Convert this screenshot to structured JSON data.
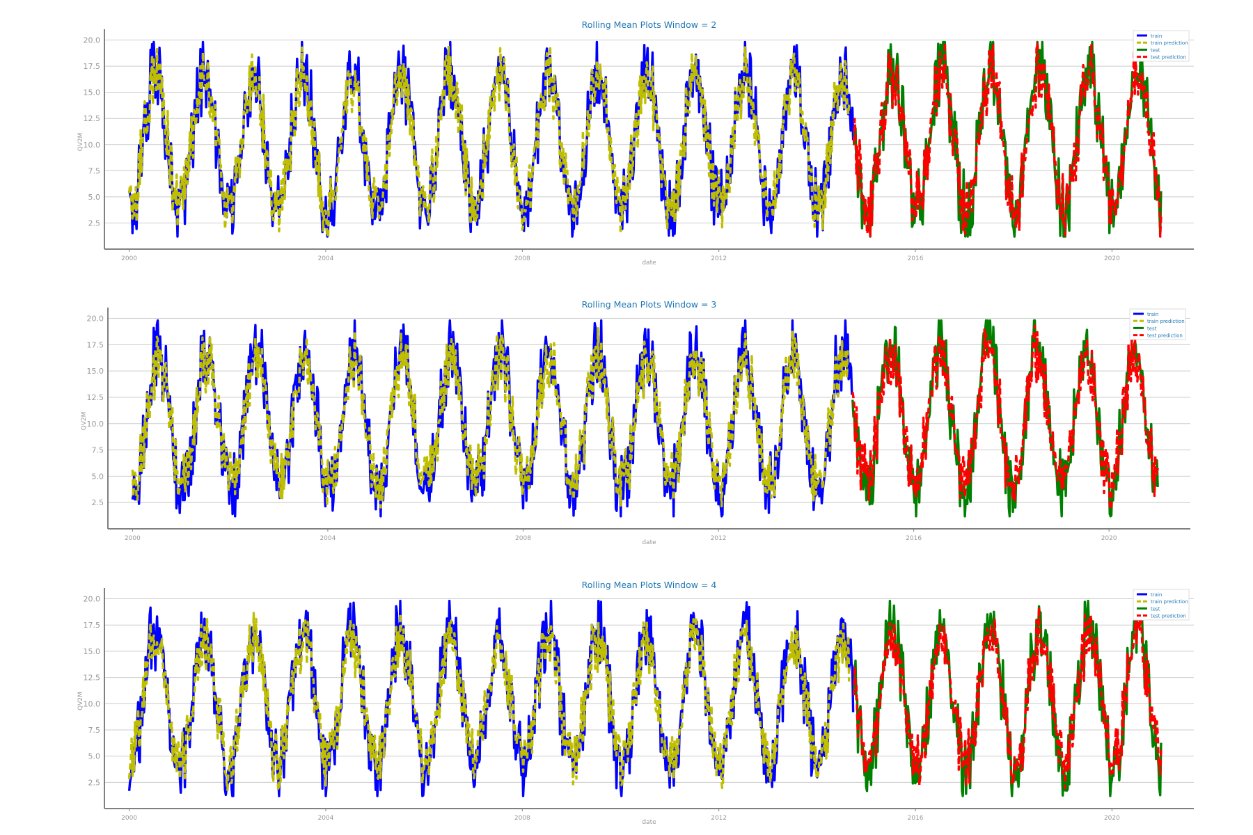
{
  "colors": {
    "train": "#0000ff",
    "train_prediction": "#bfbf00",
    "test": "#008000",
    "test_prediction": "#ff0000",
    "title": "#1f77b4",
    "axis_text": "#999999",
    "grid": "#cccccc",
    "spine": "#808080"
  },
  "chart_data": [
    {
      "type": "line",
      "title": "Rolling Mean Plots Window = 2",
      "xlabel": "date",
      "ylabel": "QV2M",
      "x_range": [
        "1999-07-01",
        "2021-09-01"
      ],
      "x_ticks": [
        "2000",
        "2004",
        "2008",
        "2012",
        "2016",
        "2020"
      ],
      "ylim": [
        0.0,
        20.5
      ],
      "y_ticks": [
        "2.5",
        "5.0",
        "7.5",
        "10.0",
        "12.5",
        "15.0",
        "17.5",
        "20.0"
      ],
      "grid": "horizontal",
      "legend_position": "top-right",
      "series": [
        {
          "name": "train",
          "x_range": [
            "2000-01-01",
            "2014-10-01"
          ],
          "seasonal_min": 2.5,
          "seasonal_max": 18.0,
          "noise": 3.0,
          "style": "solid"
        },
        {
          "name": "train prediction",
          "x_range": [
            "2000-01-01",
            "2014-09-01"
          ],
          "seasonal_min": 3.0,
          "seasonal_max": 17.5,
          "noise": 2.2,
          "style": "dashed"
        },
        {
          "name": "test",
          "x_range": [
            "2014-10-01",
            "2021-01-01"
          ],
          "seasonal_min": 2.5,
          "seasonal_max": 18.5,
          "noise": 3.0,
          "style": "solid"
        },
        {
          "name": "test prediction",
          "x_range": [
            "2014-10-01",
            "2021-01-01"
          ],
          "seasonal_min": 3.0,
          "seasonal_max": 18.0,
          "noise": 2.4,
          "style": "dashed"
        }
      ]
    },
    {
      "type": "line",
      "title": "Rolling Mean Plots Window = 3",
      "xlabel": "date",
      "ylabel": "QV2M",
      "x_range": [
        "1999-07-01",
        "2021-09-01"
      ],
      "x_ticks": [
        "2000",
        "2004",
        "2008",
        "2012",
        "2016",
        "2020"
      ],
      "ylim": [
        0.0,
        20.5
      ],
      "y_ticks": [
        "2.5",
        "5.0",
        "7.5",
        "10.0",
        "12.5",
        "15.0",
        "17.5",
        "20.0"
      ],
      "grid": "horizontal",
      "legend_position": "top-right",
      "series": [
        {
          "name": "train",
          "x_range": [
            "2000-01-01",
            "2014-10-01"
          ],
          "seasonal_min": 2.5,
          "seasonal_max": 18.0,
          "noise": 3.0,
          "style": "solid"
        },
        {
          "name": "train prediction",
          "x_range": [
            "2000-01-01",
            "2014-09-01"
          ],
          "seasonal_min": 3.5,
          "seasonal_max": 17.0,
          "noise": 1.8,
          "style": "dashed"
        },
        {
          "name": "test",
          "x_range": [
            "2014-10-01",
            "2021-01-01"
          ],
          "seasonal_min": 2.5,
          "seasonal_max": 18.5,
          "noise": 3.0,
          "style": "solid"
        },
        {
          "name": "test prediction",
          "x_range": [
            "2014-10-01",
            "2021-01-01"
          ],
          "seasonal_min": 3.5,
          "seasonal_max": 17.5,
          "noise": 2.0,
          "style": "dashed"
        }
      ]
    },
    {
      "type": "line",
      "title": "Rolling Mean Plots Window = 4",
      "xlabel": "date",
      "ylabel": "QV2M",
      "x_range": [
        "1999-07-01",
        "2021-09-01"
      ],
      "x_ticks": [
        "2000",
        "2004",
        "2008",
        "2012",
        "2016",
        "2020"
      ],
      "ylim": [
        0.0,
        20.5
      ],
      "y_ticks": [
        "2.5",
        "5.0",
        "7.5",
        "10.0",
        "12.5",
        "15.0",
        "17.5",
        "20.0"
      ],
      "grid": "horizontal",
      "legend_position": "top-right",
      "series": [
        {
          "name": "train",
          "x_range": [
            "2000-01-01",
            "2014-10-01"
          ],
          "seasonal_min": 2.5,
          "seasonal_max": 18.0,
          "noise": 3.0,
          "style": "solid"
        },
        {
          "name": "train prediction",
          "x_range": [
            "2000-01-01",
            "2014-09-01"
          ],
          "seasonal_min": 3.5,
          "seasonal_max": 17.0,
          "noise": 1.6,
          "style": "dashed"
        },
        {
          "name": "test",
          "x_range": [
            "2014-10-01",
            "2021-01-01"
          ],
          "seasonal_min": 2.5,
          "seasonal_max": 18.5,
          "noise": 3.0,
          "style": "solid"
        },
        {
          "name": "test prediction",
          "x_range": [
            "2014-10-01",
            "2021-01-01"
          ],
          "seasonal_min": 3.5,
          "seasonal_max": 17.5,
          "noise": 1.8,
          "style": "dashed"
        }
      ]
    }
  ]
}
